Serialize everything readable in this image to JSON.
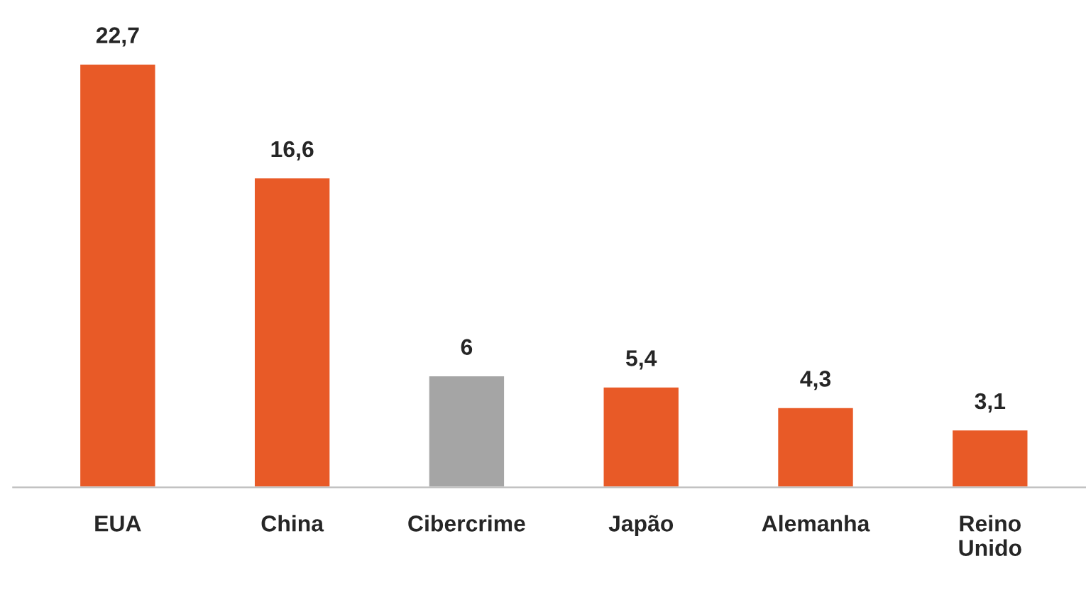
{
  "chart_data": {
    "type": "bar",
    "categories": [
      "EUA",
      "China",
      "Cibercrime",
      "Japão",
      "Alemanha",
      "Reino Unido"
    ],
    "values": [
      22.7,
      16.6,
      6,
      5.4,
      4.3,
      3.1
    ],
    "value_labels": [
      "22,7",
      "16,6",
      "6",
      "5,4",
      "4,3",
      "3,1"
    ],
    "colors": [
      "#e85a27",
      "#e85a27",
      "#a5a5a5",
      "#e85a27",
      "#e85a27",
      "#e85a27"
    ],
    "legend": false,
    "grid": false
  }
}
